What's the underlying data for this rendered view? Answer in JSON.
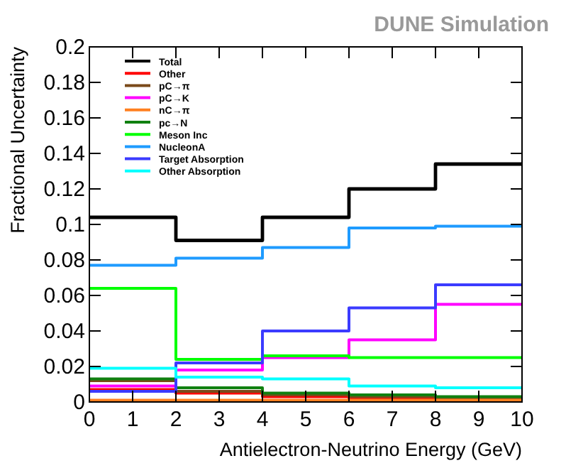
{
  "chart_data": {
    "type": "histogram",
    "annotations": [
      "DUNE Simulation"
    ],
    "xlabel": "Antielectron-Neutrino Energy (GeV)",
    "ylabel": "Fractional Uncertainty",
    "bins": [
      0,
      2,
      4,
      6,
      8,
      10
    ],
    "xlim": [
      0,
      10
    ],
    "xticks": [
      0,
      1,
      2,
      3,
      4,
      5,
      6,
      7,
      8,
      9,
      10
    ],
    "ylim": [
      0,
      0.2
    ],
    "yticks": [
      0,
      0.02,
      0.04,
      0.06,
      0.08,
      0.1,
      0.12,
      0.14,
      0.16,
      0.18,
      0.2
    ],
    "legend": "top left",
    "grid": false,
    "series": [
      {
        "name": "Total",
        "color": "#000000",
        "values": [
          0.104,
          0.091,
          0.104,
          0.12,
          0.134
        ]
      },
      {
        "name": "Other",
        "color": "#ff0000",
        "values": [
          0.007,
          0.005,
          0.003,
          0.002,
          0.001
        ]
      },
      {
        "name": "pC→π",
        "color": "#7a4a1a",
        "values": [
          0.012,
          0.006,
          0.004,
          0.003,
          0.002
        ]
      },
      {
        "name": "pC→K",
        "color": "#ff00ff",
        "values": [
          0.009,
          0.018,
          0.025,
          0.035,
          0.055
        ]
      },
      {
        "name": "nC→π",
        "color": "#ff8020",
        "values": [
          0.001,
          0.001,
          0.001,
          0.001,
          0.001
        ]
      },
      {
        "name": "pc→N",
        "color": "#108010",
        "values": [
          0.013,
          0.008,
          0.005,
          0.004,
          0.003
        ]
      },
      {
        "name": "Meson Inc",
        "color": "#00ff00",
        "values": [
          0.064,
          0.024,
          0.026,
          0.025,
          0.025
        ]
      },
      {
        "name": "NucleonA",
        "color": "#1e9bff",
        "values": [
          0.077,
          0.081,
          0.087,
          0.098,
          0.099
        ]
      },
      {
        "name": "Target Absorption",
        "color": "#3b3bff",
        "values": [
          0.006,
          0.022,
          0.04,
          0.053,
          0.066
        ]
      },
      {
        "name": "Other Absorption",
        "color": "#00ffff",
        "values": [
          0.019,
          0.014,
          0.013,
          0.009,
          0.008
        ]
      }
    ]
  }
}
